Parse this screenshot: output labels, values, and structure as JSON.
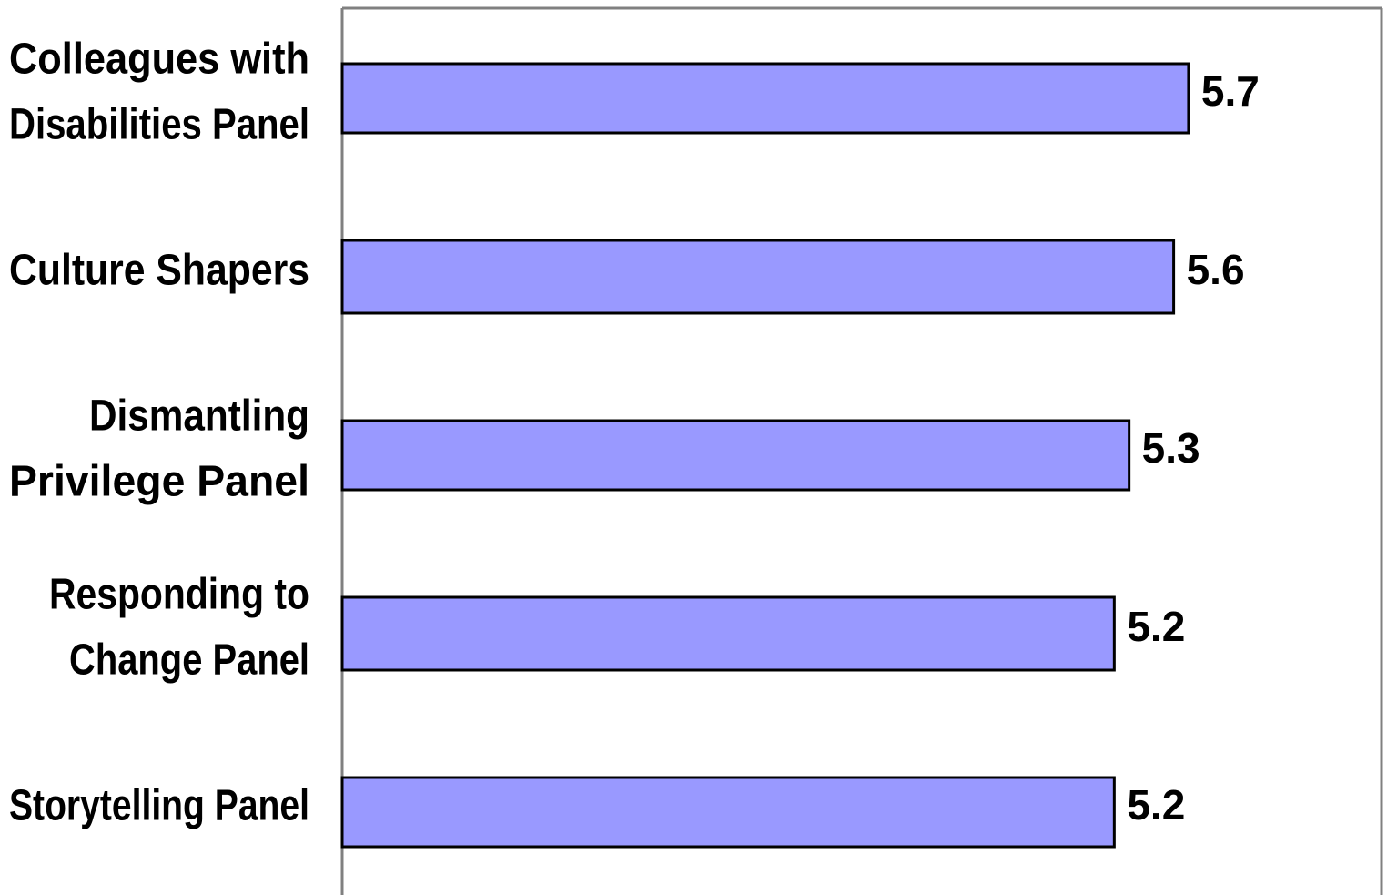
{
  "chart_data": {
    "type": "bar",
    "orientation": "horizontal",
    "categories": [
      [
        "Colleagues with",
        "Disabilities Panel"
      ],
      [
        "Culture Shapers"
      ],
      [
        "Dismantling",
        "Privilege Panel"
      ],
      [
        "Responding to",
        "Change Panel"
      ],
      [
        "Storytelling Panel"
      ]
    ],
    "values": [
      5.7,
      5.6,
      5.3,
      5.2,
      5.2
    ],
    "data_labels": [
      "5.7",
      "5.6",
      "5.3",
      "5.2",
      "5.2"
    ],
    "xlim": [
      0,
      7
    ],
    "grid": false,
    "legend": "none",
    "colors": {
      "bar_fill": "#9999ff",
      "bar_stroke": "#000000",
      "axis": "#808080"
    }
  }
}
